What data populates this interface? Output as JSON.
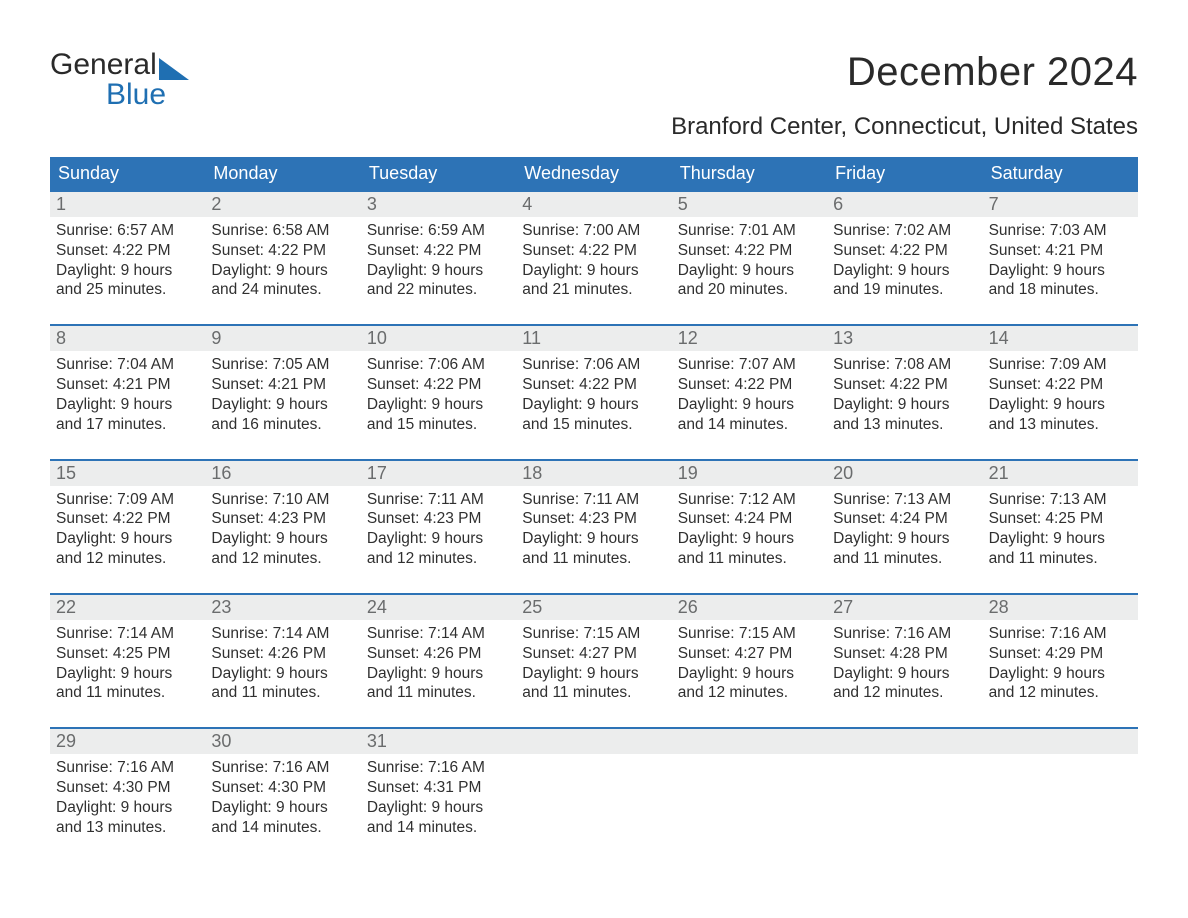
{
  "brand": {
    "word1": "General",
    "word2": "Blue",
    "text_color": "#2a2a2a",
    "accent_color": "#1f6fb2"
  },
  "title": "December 2024",
  "location": "Branford Center, Connecticut, United States",
  "colors": {
    "header_bg": "#2d73b6",
    "header_text": "#ffffff",
    "daynum_bg": "#eceded",
    "daynum_text": "#6a6c6d",
    "body_text": "#303030",
    "week_border": "#2d73b6",
    "page_bg": "#ffffff"
  },
  "fonts": {
    "title_pt": 40,
    "location_pt": 24,
    "header_pt": 18,
    "daynum_pt": 18,
    "cell_pt": 15.5
  },
  "day_names": [
    "Sunday",
    "Monday",
    "Tuesday",
    "Wednesday",
    "Thursday",
    "Friday",
    "Saturday"
  ],
  "weeks": [
    [
      {
        "n": "1",
        "sunrise": "Sunrise: 6:57 AM",
        "sunset": "Sunset: 4:22 PM",
        "d1": "Daylight: 9 hours",
        "d2": "and 25 minutes."
      },
      {
        "n": "2",
        "sunrise": "Sunrise: 6:58 AM",
        "sunset": "Sunset: 4:22 PM",
        "d1": "Daylight: 9 hours",
        "d2": "and 24 minutes."
      },
      {
        "n": "3",
        "sunrise": "Sunrise: 6:59 AM",
        "sunset": "Sunset: 4:22 PM",
        "d1": "Daylight: 9 hours",
        "d2": "and 22 minutes."
      },
      {
        "n": "4",
        "sunrise": "Sunrise: 7:00 AM",
        "sunset": "Sunset: 4:22 PM",
        "d1": "Daylight: 9 hours",
        "d2": "and 21 minutes."
      },
      {
        "n": "5",
        "sunrise": "Sunrise: 7:01 AM",
        "sunset": "Sunset: 4:22 PM",
        "d1": "Daylight: 9 hours",
        "d2": "and 20 minutes."
      },
      {
        "n": "6",
        "sunrise": "Sunrise: 7:02 AM",
        "sunset": "Sunset: 4:22 PM",
        "d1": "Daylight: 9 hours",
        "d2": "and 19 minutes."
      },
      {
        "n": "7",
        "sunrise": "Sunrise: 7:03 AM",
        "sunset": "Sunset: 4:21 PM",
        "d1": "Daylight: 9 hours",
        "d2": "and 18 minutes."
      }
    ],
    [
      {
        "n": "8",
        "sunrise": "Sunrise: 7:04 AM",
        "sunset": "Sunset: 4:21 PM",
        "d1": "Daylight: 9 hours",
        "d2": "and 17 minutes."
      },
      {
        "n": "9",
        "sunrise": "Sunrise: 7:05 AM",
        "sunset": "Sunset: 4:21 PM",
        "d1": "Daylight: 9 hours",
        "d2": "and 16 minutes."
      },
      {
        "n": "10",
        "sunrise": "Sunrise: 7:06 AM",
        "sunset": "Sunset: 4:22 PM",
        "d1": "Daylight: 9 hours",
        "d2": "and 15 minutes."
      },
      {
        "n": "11",
        "sunrise": "Sunrise: 7:06 AM",
        "sunset": "Sunset: 4:22 PM",
        "d1": "Daylight: 9 hours",
        "d2": "and 15 minutes."
      },
      {
        "n": "12",
        "sunrise": "Sunrise: 7:07 AM",
        "sunset": "Sunset: 4:22 PM",
        "d1": "Daylight: 9 hours",
        "d2": "and 14 minutes."
      },
      {
        "n": "13",
        "sunrise": "Sunrise: 7:08 AM",
        "sunset": "Sunset: 4:22 PM",
        "d1": "Daylight: 9 hours",
        "d2": "and 13 minutes."
      },
      {
        "n": "14",
        "sunrise": "Sunrise: 7:09 AM",
        "sunset": "Sunset: 4:22 PM",
        "d1": "Daylight: 9 hours",
        "d2": "and 13 minutes."
      }
    ],
    [
      {
        "n": "15",
        "sunrise": "Sunrise: 7:09 AM",
        "sunset": "Sunset: 4:22 PM",
        "d1": "Daylight: 9 hours",
        "d2": "and 12 minutes."
      },
      {
        "n": "16",
        "sunrise": "Sunrise: 7:10 AM",
        "sunset": "Sunset: 4:23 PM",
        "d1": "Daylight: 9 hours",
        "d2": "and 12 minutes."
      },
      {
        "n": "17",
        "sunrise": "Sunrise: 7:11 AM",
        "sunset": "Sunset: 4:23 PM",
        "d1": "Daylight: 9 hours",
        "d2": "and 12 minutes."
      },
      {
        "n": "18",
        "sunrise": "Sunrise: 7:11 AM",
        "sunset": "Sunset: 4:23 PM",
        "d1": "Daylight: 9 hours",
        "d2": "and 11 minutes."
      },
      {
        "n": "19",
        "sunrise": "Sunrise: 7:12 AM",
        "sunset": "Sunset: 4:24 PM",
        "d1": "Daylight: 9 hours",
        "d2": "and 11 minutes."
      },
      {
        "n": "20",
        "sunrise": "Sunrise: 7:13 AM",
        "sunset": "Sunset: 4:24 PM",
        "d1": "Daylight: 9 hours",
        "d2": "and 11 minutes."
      },
      {
        "n": "21",
        "sunrise": "Sunrise: 7:13 AM",
        "sunset": "Sunset: 4:25 PM",
        "d1": "Daylight: 9 hours",
        "d2": "and 11 minutes."
      }
    ],
    [
      {
        "n": "22",
        "sunrise": "Sunrise: 7:14 AM",
        "sunset": "Sunset: 4:25 PM",
        "d1": "Daylight: 9 hours",
        "d2": "and 11 minutes."
      },
      {
        "n": "23",
        "sunrise": "Sunrise: 7:14 AM",
        "sunset": "Sunset: 4:26 PM",
        "d1": "Daylight: 9 hours",
        "d2": "and 11 minutes."
      },
      {
        "n": "24",
        "sunrise": "Sunrise: 7:14 AM",
        "sunset": "Sunset: 4:26 PM",
        "d1": "Daylight: 9 hours",
        "d2": "and 11 minutes."
      },
      {
        "n": "25",
        "sunrise": "Sunrise: 7:15 AM",
        "sunset": "Sunset: 4:27 PM",
        "d1": "Daylight: 9 hours",
        "d2": "and 11 minutes."
      },
      {
        "n": "26",
        "sunrise": "Sunrise: 7:15 AM",
        "sunset": "Sunset: 4:27 PM",
        "d1": "Daylight: 9 hours",
        "d2": "and 12 minutes."
      },
      {
        "n": "27",
        "sunrise": "Sunrise: 7:16 AM",
        "sunset": "Sunset: 4:28 PM",
        "d1": "Daylight: 9 hours",
        "d2": "and 12 minutes."
      },
      {
        "n": "28",
        "sunrise": "Sunrise: 7:16 AM",
        "sunset": "Sunset: 4:29 PM",
        "d1": "Daylight: 9 hours",
        "d2": "and 12 minutes."
      }
    ],
    [
      {
        "n": "29",
        "sunrise": "Sunrise: 7:16 AM",
        "sunset": "Sunset: 4:30 PM",
        "d1": "Daylight: 9 hours",
        "d2": "and 13 minutes."
      },
      {
        "n": "30",
        "sunrise": "Sunrise: 7:16 AM",
        "sunset": "Sunset: 4:30 PM",
        "d1": "Daylight: 9 hours",
        "d2": "and 14 minutes."
      },
      {
        "n": "31",
        "sunrise": "Sunrise: 7:16 AM",
        "sunset": "Sunset: 4:31 PM",
        "d1": "Daylight: 9 hours",
        "d2": "and 14 minutes."
      },
      null,
      null,
      null,
      null
    ]
  ]
}
